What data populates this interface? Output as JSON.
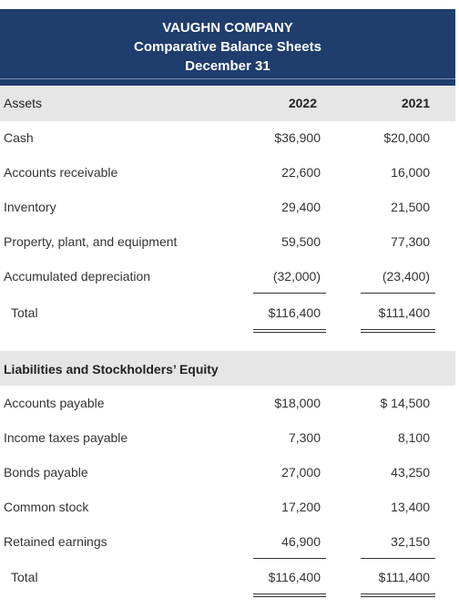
{
  "header": {
    "company": "VAUGHN COMPANY",
    "title": "Comparative Balance Sheets",
    "date": "December 31"
  },
  "columns": {
    "y1": "2022",
    "y2": "2021"
  },
  "assets": {
    "heading": "Assets",
    "rows": [
      {
        "name": "Cash",
        "y2022": "$36,900",
        "y2021": "$20,000"
      },
      {
        "name": "Accounts receivable",
        "y2022": "22,600",
        "y2021": "16,000"
      },
      {
        "name": "Inventory",
        "y2022": "29,400",
        "y2021": "21,500"
      },
      {
        "name": "Property, plant, and equipment",
        "y2022": "59,500",
        "y2021": "77,300"
      },
      {
        "name": "Accumulated depreciation",
        "y2022": "(32,000)",
        "y2021": "(23,400)"
      }
    ],
    "total": {
      "name": "Total",
      "y2022": "$116,400",
      "y2021": "$111,400"
    }
  },
  "liabilities": {
    "heading": "Liabilities and Stockholders’ Equity",
    "rows": [
      {
        "name": "Accounts payable",
        "y2022": "$18,000",
        "y2021": "$ 14,500"
      },
      {
        "name": "Income taxes payable",
        "y2022": "7,300",
        "y2021": "8,100"
      },
      {
        "name": "Bonds payable",
        "y2022": "27,000",
        "y2021": "43,250"
      },
      {
        "name": "Common stock",
        "y2022": "17,200",
        "y2021": "13,400"
      },
      {
        "name": "Retained earnings",
        "y2022": "46,900",
        "y2021": "32,150"
      }
    ],
    "total": {
      "name": "Total",
      "y2022": "$116,400",
      "y2021": "$111,400"
    }
  }
}
